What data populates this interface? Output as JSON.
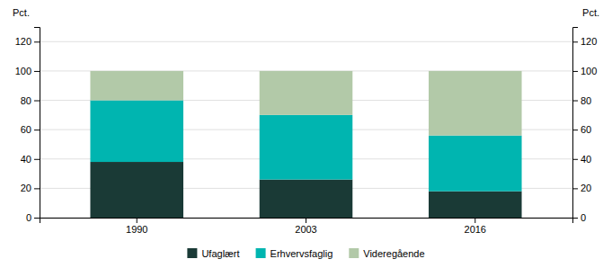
{
  "chart_data": {
    "type": "bar",
    "stacked": true,
    "categories": [
      "1990",
      "2003",
      "2016"
    ],
    "series": [
      {
        "name": "Ufaglært",
        "color": "#1a3a36",
        "values": [
          38,
          26,
          18
        ]
      },
      {
        "name": "Erhvervsfaglig",
        "color": "#00b5b0",
        "values": [
          42,
          44,
          38
        ]
      },
      {
        "name": "Videregående",
        "color": "#b2c9a8",
        "values": [
          20,
          30,
          44
        ]
      }
    ],
    "ylabel": "Pct.",
    "y2label": "Pct.",
    "ylim": [
      0,
      130
    ],
    "yticks": [
      0,
      20,
      40,
      60,
      80,
      100,
      120
    ],
    "y2lim": [
      0,
      130
    ],
    "y2ticks": [
      0,
      20,
      40,
      60,
      80,
      100,
      120
    ],
    "grid": true,
    "legend": "bottom"
  }
}
